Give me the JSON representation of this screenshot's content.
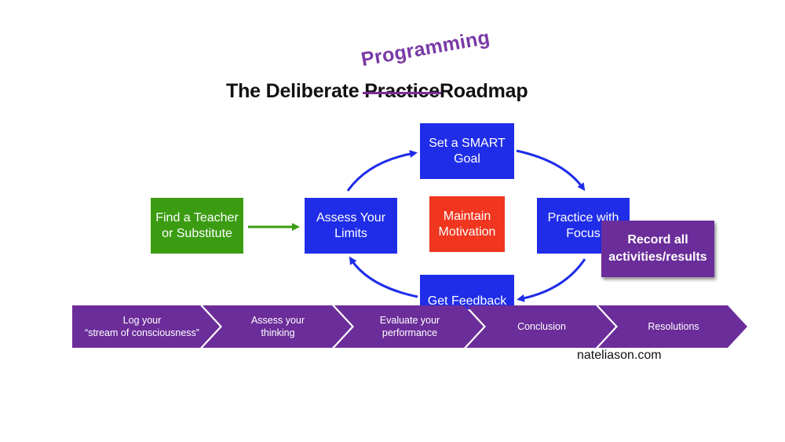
{
  "title": {
    "prefix": "The Deliberate",
    "struck": "Practice",
    "suffix": "Roadmap",
    "handwritten": "Programming"
  },
  "cycle": {
    "teacher": "Find a Teacher or Substitute",
    "assess": "Assess Your Limits",
    "goal": "Set a SMART Goal",
    "motivation": "Maintain Motivation",
    "practice": "Practice with Focus",
    "feedback": "Get Feedback"
  },
  "overlay": {
    "record": "Record all activities/results"
  },
  "chevrons": [
    {
      "line1": "Log your",
      "line2": "“stream of consciousness”"
    },
    {
      "line1": "Assess your",
      "line2": "thinking"
    },
    {
      "line1": "Evaluate your",
      "line2": "performance"
    },
    {
      "line1": "Conclusion",
      "line2": ""
    },
    {
      "line1": "Resolutions",
      "line2": ""
    }
  ],
  "watermark": "nateliason.com",
  "colors": {
    "box_blue": "#1f2de8",
    "box_green": "#3b9c12",
    "box_red": "#f0361f",
    "purple": "#6b2d9a",
    "arrow_blue": "#1f2de8",
    "arrow_green": "#3b9c12"
  }
}
